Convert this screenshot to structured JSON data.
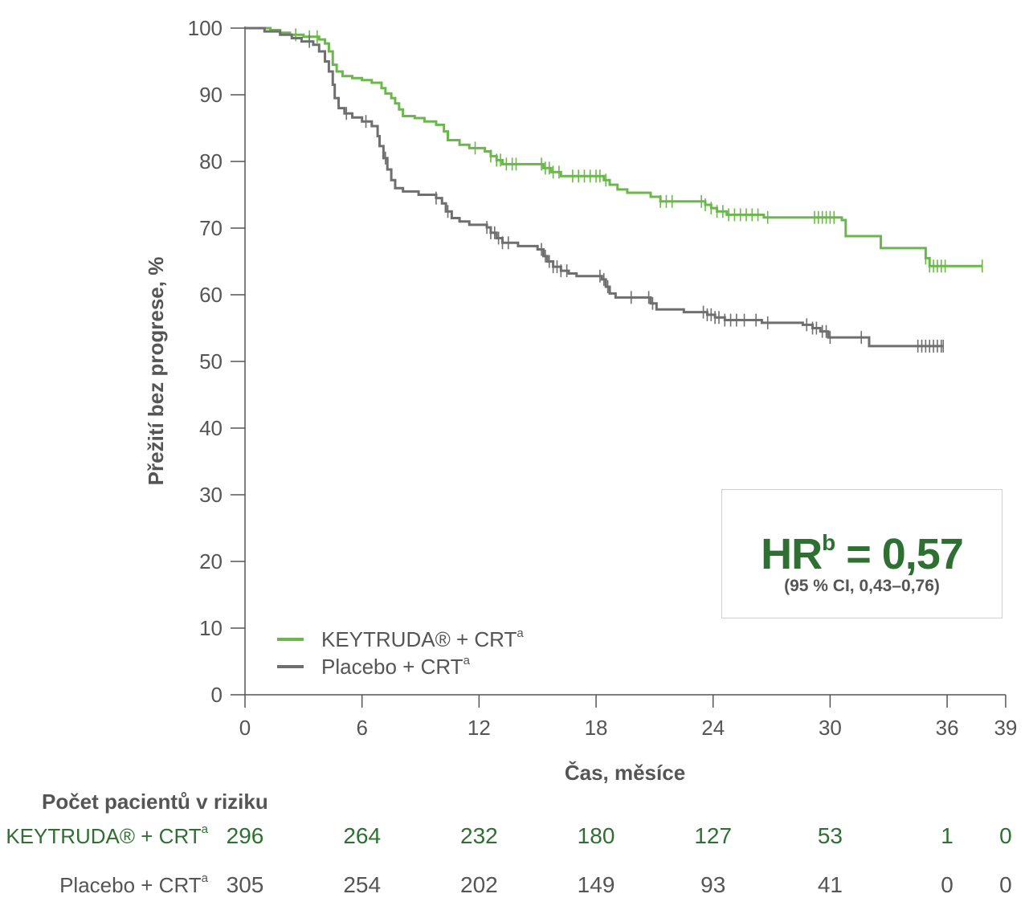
{
  "chart_data": {
    "type": "line",
    "title": "",
    "xlabel": "Čas, měsíce",
    "ylabel": "Přežití bez progrese, %",
    "xlim": [
      0,
      39
    ],
    "ylim": [
      0,
      100
    ],
    "xticks": [
      0,
      6,
      12,
      18,
      24,
      30,
      36,
      39
    ],
    "yticks": [
      0,
      10,
      20,
      30,
      40,
      50,
      60,
      70,
      80,
      90,
      100
    ],
    "grid": false,
    "legend_position": "bottom-left",
    "series": [
      {
        "name": "KEYTRUDA® + CRT",
        "superscript": "a",
        "color": "#6ab84a",
        "steps": [
          [
            0,
            100
          ],
          [
            1.3,
            99.7
          ],
          [
            1.8,
            99.3
          ],
          [
            2.3,
            99
          ],
          [
            3,
            98.7
          ],
          [
            3.8,
            98.3
          ],
          [
            4.1,
            97.7
          ],
          [
            4.3,
            96.5
          ],
          [
            4.5,
            94.5
          ],
          [
            4.7,
            93.5
          ],
          [
            5,
            92.8
          ],
          [
            5.5,
            92.5
          ],
          [
            6,
            92.2
          ],
          [
            6.5,
            91.8
          ],
          [
            7,
            91
          ],
          [
            7.2,
            90.2
          ],
          [
            7.5,
            89.5
          ],
          [
            7.7,
            88.7
          ],
          [
            7.9,
            87.8
          ],
          [
            8.1,
            86.8
          ],
          [
            8.7,
            86.5
          ],
          [
            9.2,
            86
          ],
          [
            9.8,
            85.5
          ],
          [
            10.2,
            84.5
          ],
          [
            10.4,
            83.2
          ],
          [
            11,
            82.5
          ],
          [
            11.5,
            82
          ],
          [
            12.3,
            81.5
          ],
          [
            12.6,
            80.8
          ],
          [
            12.9,
            80.2
          ],
          [
            13.2,
            79.6
          ],
          [
            15.3,
            79
          ],
          [
            15.7,
            78.4
          ],
          [
            16.2,
            77.8
          ],
          [
            18.4,
            77.2
          ],
          [
            18.7,
            76.5
          ],
          [
            19.1,
            75.8
          ],
          [
            19.6,
            75.3
          ],
          [
            20.8,
            74.7
          ],
          [
            21.3,
            74
          ],
          [
            23.6,
            73.5
          ],
          [
            23.9,
            73
          ],
          [
            24.2,
            72.5
          ],
          [
            24.7,
            72
          ],
          [
            26.6,
            71.6
          ],
          [
            30.6,
            71.2
          ],
          [
            30.8,
            68.8
          ],
          [
            32.6,
            67
          ],
          [
            34.9,
            65.5
          ],
          [
            35.1,
            64.3
          ],
          [
            37.8,
            64.3
          ]
        ],
        "censors": [
          2.6,
          3.3,
          3.7,
          11.8,
          12.6,
          12.9,
          13.1,
          13.4,
          13.7,
          13.9,
          15.2,
          15.4,
          15.6,
          15.8,
          16.1,
          16.8,
          17.1,
          17.4,
          17.7,
          18.0,
          18.2,
          18.5,
          21.3,
          21.6,
          21.9,
          23.4,
          23.6,
          23.9,
          24.2,
          24.5,
          24.8,
          25.1,
          25.4,
          25.7,
          26.0,
          26.3,
          26.8,
          29.2,
          29.4,
          29.6,
          29.8,
          30.0,
          30.2,
          34.9,
          35.1,
          35.3,
          35.5,
          35.7,
          35.9,
          37.8
        ],
        "at_risk": [
          296,
          264,
          232,
          180,
          127,
          53,
          1,
          0
        ]
      },
      {
        "name": "Placebo + CRT",
        "superscript": "a",
        "color": "#6f6f6f",
        "steps": [
          [
            0,
            100
          ],
          [
            1,
            99.5
          ],
          [
            1.8,
            99
          ],
          [
            2.4,
            98.5
          ],
          [
            2.9,
            98
          ],
          [
            3.5,
            97.5
          ],
          [
            3.8,
            96.5
          ],
          [
            4.1,
            95
          ],
          [
            4.3,
            93.5
          ],
          [
            4.5,
            91.5
          ],
          [
            4.6,
            89.5
          ],
          [
            4.8,
            88
          ],
          [
            5.1,
            87.2
          ],
          [
            5.5,
            86.6
          ],
          [
            6,
            86
          ],
          [
            6.5,
            85.3
          ],
          [
            6.8,
            83.8
          ],
          [
            6.9,
            82.3
          ],
          [
            7.1,
            80.5
          ],
          [
            7.3,
            78.8
          ],
          [
            7.5,
            77.2
          ],
          [
            7.7,
            76
          ],
          [
            8.1,
            75.5
          ],
          [
            8.9,
            75
          ],
          [
            9.8,
            74.5
          ],
          [
            10.1,
            73.7
          ],
          [
            10.3,
            72.5
          ],
          [
            10.6,
            71.5
          ],
          [
            11,
            71
          ],
          [
            11.5,
            70.5
          ],
          [
            12.4,
            70.1
          ],
          [
            12.6,
            69.3
          ],
          [
            12.9,
            68.5
          ],
          [
            13.2,
            67.8
          ],
          [
            14,
            67.3
          ],
          [
            15,
            66.8
          ],
          [
            15.3,
            65.8
          ],
          [
            15.5,
            65
          ],
          [
            15.8,
            64.2
          ],
          [
            16.2,
            63.6
          ],
          [
            16.6,
            63.2
          ],
          [
            17,
            62.8
          ],
          [
            18.3,
            62.3
          ],
          [
            18.5,
            61.2
          ],
          [
            18.7,
            60.2
          ],
          [
            19,
            59.6
          ],
          [
            20.8,
            58.7
          ],
          [
            21.1,
            57.8
          ],
          [
            22.5,
            57.4
          ],
          [
            23.7,
            57
          ],
          [
            24.1,
            56.6
          ],
          [
            24.6,
            56.2
          ],
          [
            26.5,
            55.8
          ],
          [
            28.6,
            55.5
          ],
          [
            29.1,
            55
          ],
          [
            29.5,
            54.5
          ],
          [
            29.9,
            53.6
          ],
          [
            32,
            52.3
          ],
          [
            35.8,
            52.3
          ]
        ],
        "censors": [
          3.3,
          5.2,
          6.2,
          7.2,
          9.8,
          10.4,
          12.4,
          12.6,
          12.8,
          13.0,
          13.2,
          13.5,
          15.2,
          15.4,
          15.6,
          15.8,
          16.0,
          16.2,
          16.5,
          18.2,
          18.4,
          18.6,
          19.8,
          20.7,
          20.9,
          23.5,
          23.7,
          23.9,
          24.1,
          24.3,
          24.6,
          24.9,
          25.2,
          25.6,
          26.2,
          26.8,
          28.8,
          29.1,
          29.3,
          29.6,
          29.8,
          30.0,
          31.6,
          34.5,
          34.7,
          34.9,
          35.1,
          35.3,
          35.5,
          35.7,
          35.8
        ],
        "at_risk": [
          305,
          254,
          202,
          149,
          93,
          41,
          0,
          0
        ]
      }
    ],
    "at_risk_times": [
      0,
      6,
      12,
      18,
      24,
      30,
      36,
      39
    ],
    "annotation": {
      "hr_label": "HR",
      "hr_sup": "b",
      "hr_value": " = 0,57",
      "ci": "(95 % CI, 0,43–0,76)"
    }
  },
  "risk_table": {
    "title": "Počet pacientů v riziku",
    "row1_label": "KEYTRUDA® + CRT",
    "row2_label": "Placebo + CRT",
    "sup": "a"
  }
}
